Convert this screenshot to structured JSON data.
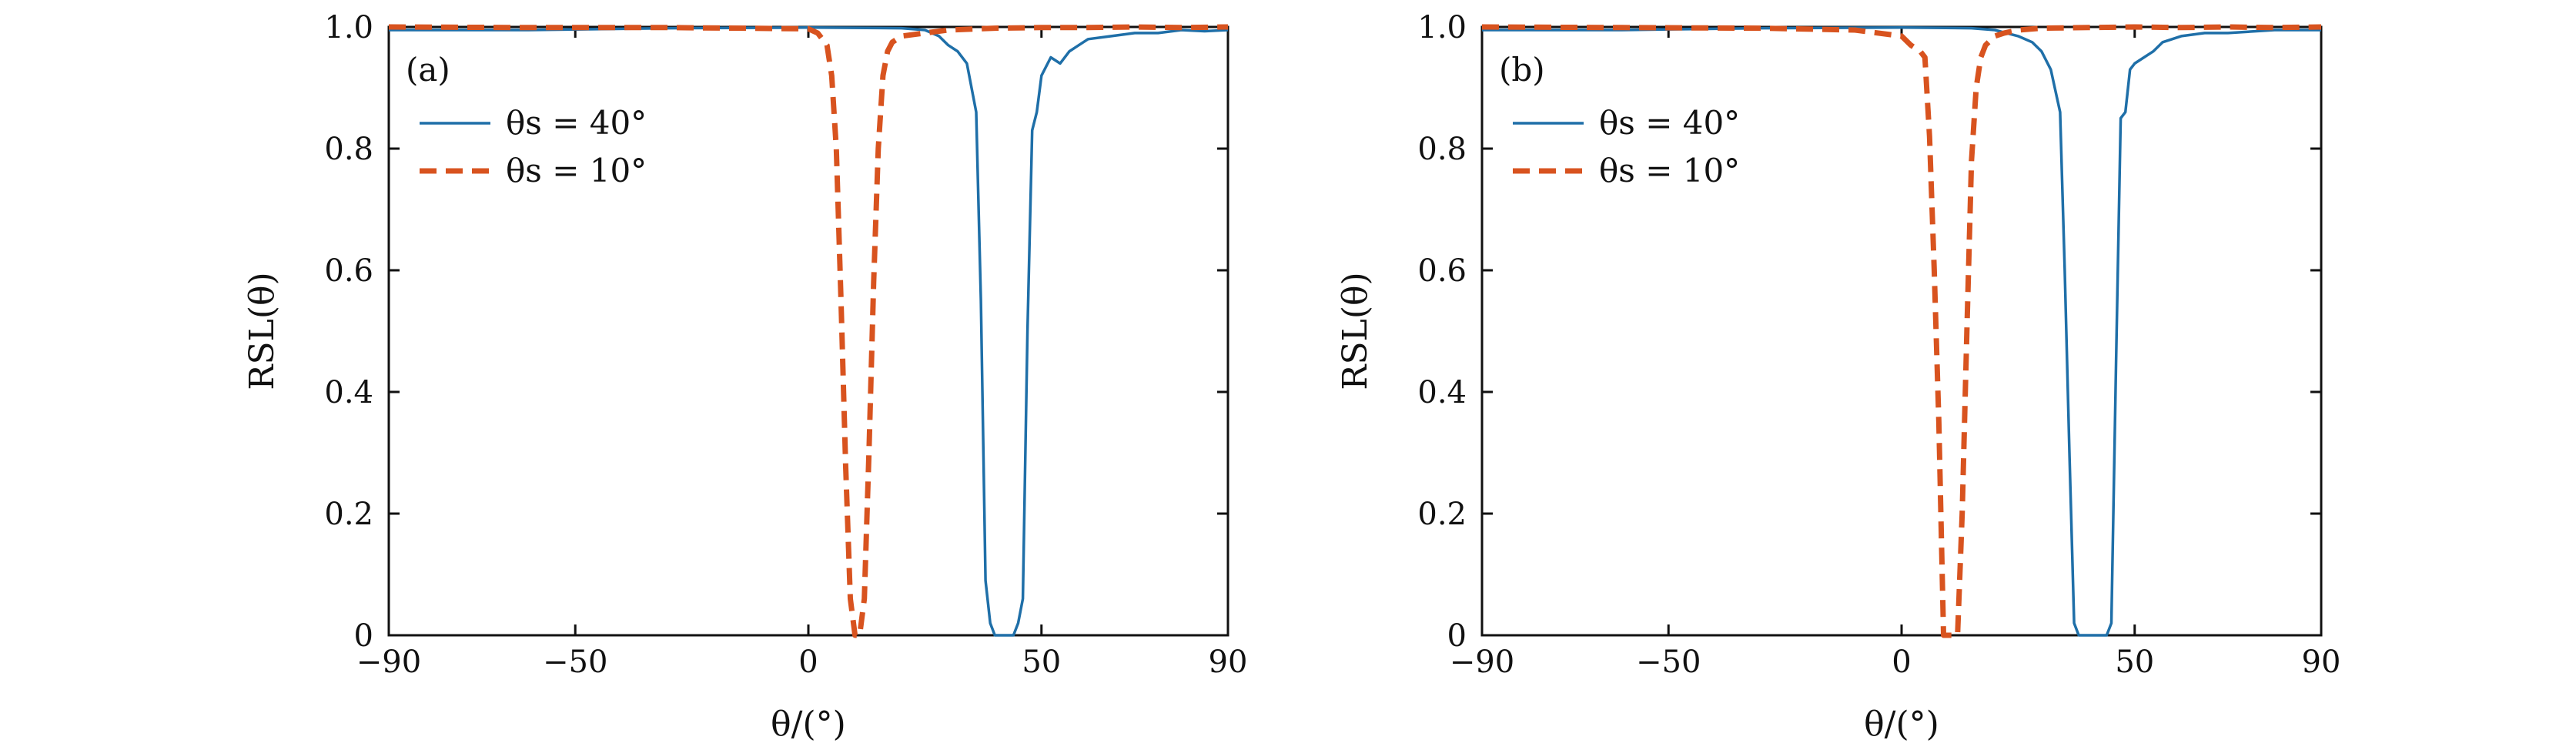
{
  "colors": {
    "series_40": "#1f6fa8",
    "series_10": "#d8531f",
    "axis": "#111111"
  },
  "chart_data": [
    {
      "type": "line",
      "panel_label": "(a)",
      "xlabel": "θ/(°)",
      "ylabel": "RSL(θ)",
      "xlim": [
        -90,
        90
      ],
      "ylim": [
        0,
        1.0
      ],
      "x_ticks": [
        -90,
        -50,
        0,
        50,
        90
      ],
      "x_tick_labels": [
        "−90",
        "−50",
        "0",
        "50",
        "90"
      ],
      "y_ticks": [
        0,
        0.2,
        0.4,
        0.6,
        0.8,
        1.0
      ],
      "y_tick_labels": [
        "0",
        "0.2",
        "0.4",
        "0.6",
        "0.8",
        "1.0"
      ],
      "grid": false,
      "legend_position": "top-left",
      "series": [
        {
          "name": "θs = 40°",
          "style": "solid",
          "color": "#1f6fa8",
          "x": [
            -90,
            -60,
            -30,
            0,
            20,
            25,
            28,
            30,
            32,
            34,
            36,
            37,
            38,
            39,
            40,
            41,
            42,
            43,
            44,
            45,
            46,
            47,
            48,
            49,
            50,
            52,
            54,
            56,
            58,
            60,
            65,
            70,
            75,
            80,
            85,
            90
          ],
          "y": [
            0.995,
            0.995,
            0.998,
            0.999,
            0.998,
            0.995,
            0.985,
            0.97,
            0.96,
            0.94,
            0.86,
            0.55,
            0.09,
            0.02,
            0.0,
            0.0,
            0.0,
            0.0,
            0.0,
            0.02,
            0.06,
            0.5,
            0.83,
            0.86,
            0.92,
            0.95,
            0.94,
            0.96,
            0.97,
            0.98,
            0.985,
            0.99,
            0.99,
            0.995,
            0.993,
            0.995
          ]
        },
        {
          "name": "θs = 10°",
          "style": "dashed",
          "color": "#d8531f",
          "x": [
            -90,
            -60,
            -30,
            0,
            2,
            4,
            5,
            6,
            7,
            8,
            9,
            10,
            11,
            12,
            13,
            14,
            15,
            16,
            17,
            18,
            20,
            25,
            30,
            40,
            50,
            60,
            70,
            80,
            90
          ],
          "y": [
            1.0,
            0.999,
            0.999,
            0.997,
            0.99,
            0.97,
            0.92,
            0.8,
            0.55,
            0.28,
            0.06,
            0.0,
            0.0,
            0.06,
            0.3,
            0.58,
            0.8,
            0.92,
            0.96,
            0.975,
            0.985,
            0.99,
            0.995,
            0.998,
            0.999,
            0.999,
            1.0,
            0.999,
            1.0
          ]
        }
      ]
    },
    {
      "type": "line",
      "panel_label": "(b)",
      "xlabel": "θ/(°)",
      "ylabel": "RSL(θ)",
      "xlim": [
        -90,
        90
      ],
      "ylim": [
        0,
        1.0
      ],
      "x_ticks": [
        -90,
        -50,
        0,
        50,
        90
      ],
      "x_tick_labels": [
        "−90",
        "−50",
        "0",
        "50",
        "90"
      ],
      "y_ticks": [
        0,
        0.2,
        0.4,
        0.6,
        0.8,
        1.0
      ],
      "y_tick_labels": [
        "0",
        "0.2",
        "0.4",
        "0.6",
        "0.8",
        "1.0"
      ],
      "grid": false,
      "legend_position": "top-left",
      "series": [
        {
          "name": "θs = 40°",
          "style": "solid",
          "color": "#1f6fa8",
          "x": [
            -90,
            -60,
            -30,
            0,
            15,
            20,
            25,
            28,
            30,
            32,
            34,
            35,
            36,
            37,
            38,
            39,
            40,
            41,
            42,
            43,
            44,
            45,
            46,
            47,
            48,
            49,
            50,
            52,
            54,
            56,
            60,
            65,
            70,
            80,
            90
          ],
          "y": [
            0.995,
            0.995,
            0.998,
            0.999,
            0.998,
            0.995,
            0.985,
            0.975,
            0.96,
            0.93,
            0.86,
            0.6,
            0.3,
            0.02,
            0.0,
            0.0,
            0.0,
            0.0,
            0.0,
            0.0,
            0.0,
            0.02,
            0.45,
            0.85,
            0.86,
            0.93,
            0.94,
            0.95,
            0.96,
            0.975,
            0.985,
            0.99,
            0.99,
            0.995,
            0.995
          ]
        },
        {
          "name": "θs = 10°",
          "style": "dashed",
          "color": "#d8531f",
          "x": [
            -90,
            -60,
            -30,
            -10,
            0,
            2,
            4,
            5,
            6,
            7,
            8,
            9,
            10,
            11,
            12,
            13,
            14,
            15,
            16,
            17,
            18,
            20,
            22,
            25,
            30,
            40,
            50,
            60,
            70,
            80,
            90
          ],
          "y": [
            1.0,
            0.999,
            0.998,
            0.995,
            0.985,
            0.97,
            0.96,
            0.95,
            0.82,
            0.6,
            0.35,
            0.0,
            0.0,
            0.0,
            0.0,
            0.2,
            0.5,
            0.78,
            0.9,
            0.95,
            0.97,
            0.985,
            0.99,
            0.995,
            0.998,
            0.999,
            1.0,
            0.999,
            1.0,
            0.999,
            1.0
          ]
        }
      ]
    }
  ]
}
